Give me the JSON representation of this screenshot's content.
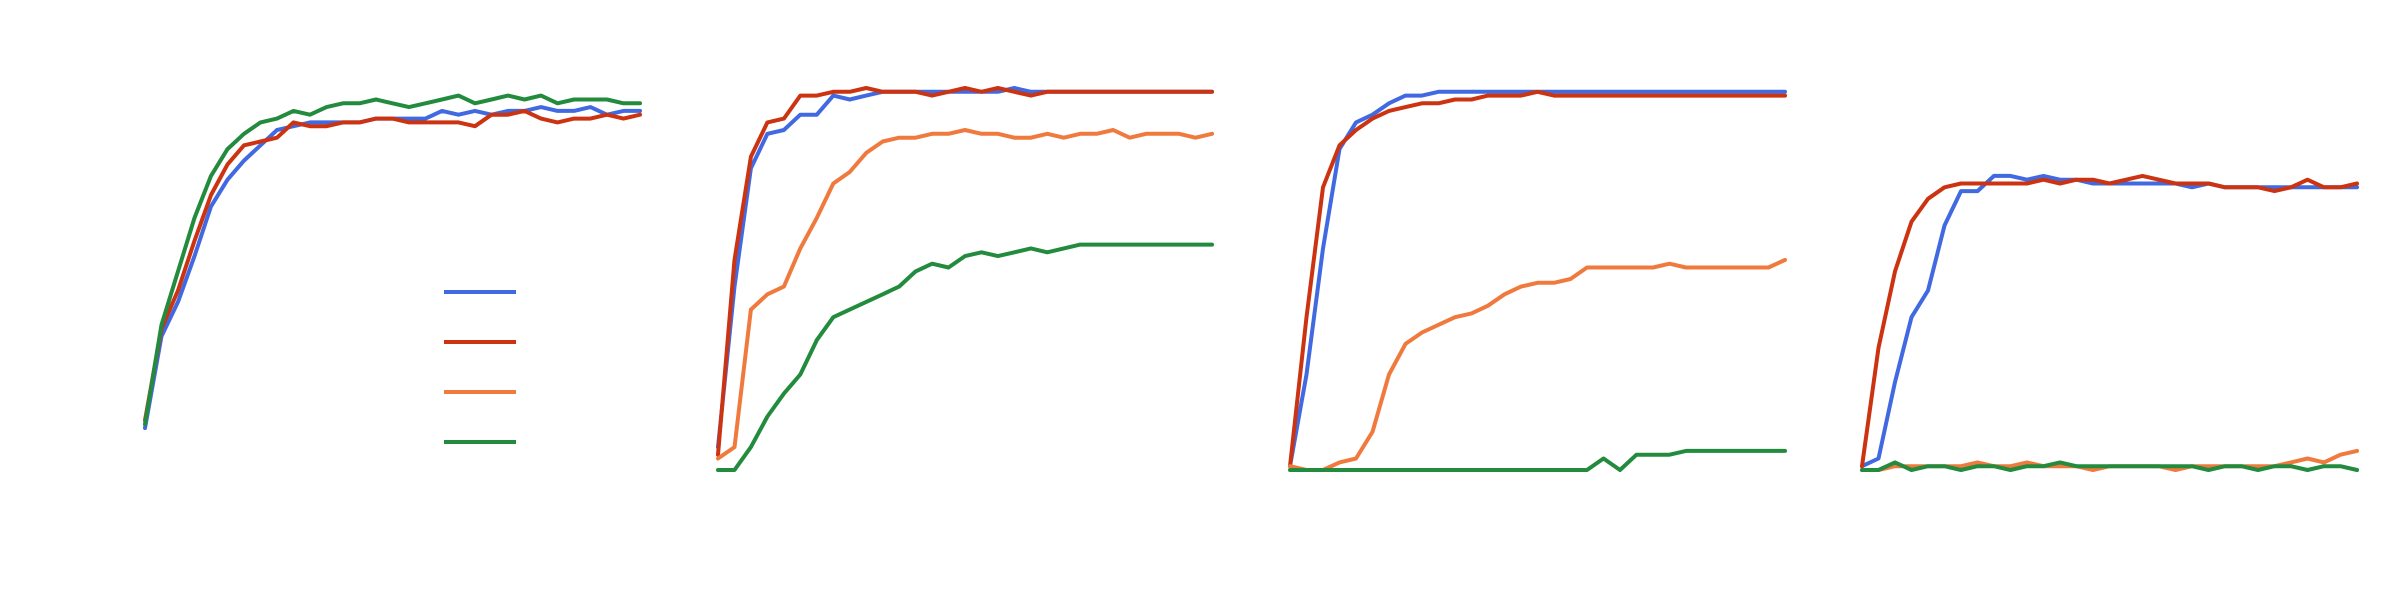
{
  "colors": {
    "blue": "#4169e1",
    "red": "#cc3311",
    "orange": "#f07a3e",
    "green": "#238b3d",
    "background": "#ffffff"
  },
  "chart_data": [
    {
      "type": "line",
      "title": "",
      "xlabel": "",
      "ylabel": "",
      "xlim": [
        0,
        30
      ],
      "ylim": [
        0,
        1
      ],
      "grid": false,
      "legend": {
        "placement": "lower-right",
        "entries": [
          {
            "label": "",
            "color": "#4169e1"
          },
          {
            "label": "",
            "color": "#cc3311"
          },
          {
            "label": "",
            "color": "#f07a3e"
          },
          {
            "label": "",
            "color": "#238b3d"
          }
        ]
      },
      "series": [
        {
          "color": "#4169e1",
          "values": [
            0.11,
            0.35,
            0.44,
            0.56,
            0.69,
            0.76,
            0.81,
            0.85,
            0.89,
            0.9,
            0.91,
            0.91,
            0.91,
            0.91,
            0.92,
            0.92,
            0.92,
            0.92,
            0.94,
            0.93,
            0.94,
            0.93,
            0.94,
            0.94,
            0.95,
            0.94,
            0.94,
            0.95,
            0.93,
            0.94,
            0.94
          ]
        },
        {
          "color": "#cc3311",
          "values": [
            0.13,
            0.37,
            0.47,
            0.6,
            0.72,
            0.8,
            0.85,
            0.86,
            0.87,
            0.91,
            0.9,
            0.9,
            0.91,
            0.91,
            0.92,
            0.92,
            0.91,
            0.91,
            0.91,
            0.91,
            0.9,
            0.93,
            0.93,
            0.94,
            0.92,
            0.91,
            0.92,
            0.92,
            0.93,
            0.92,
            0.93
          ]
        },
        {
          "color": "#238b3d",
          "values": [
            0.12,
            0.38,
            0.52,
            0.66,
            0.77,
            0.84,
            0.88,
            0.91,
            0.92,
            0.94,
            0.93,
            0.95,
            0.96,
            0.96,
            0.97,
            0.96,
            0.95,
            0.96,
            0.97,
            0.98,
            0.96,
            0.97,
            0.98,
            0.97,
            0.98,
            0.96,
            0.97,
            0.97,
            0.97,
            0.96,
            0.96
          ]
        }
      ]
    },
    {
      "type": "line",
      "title": "",
      "xlabel": "",
      "ylabel": "",
      "xlim": [
        0,
        30
      ],
      "ylim": [
        0,
        1
      ],
      "grid": false,
      "series": [
        {
          "color": "#4169e1",
          "values": [
            0.06,
            0.48,
            0.79,
            0.88,
            0.89,
            0.93,
            0.93,
            0.98,
            0.97,
            0.98,
            0.99,
            0.99,
            0.99,
            0.99,
            0.99,
            0.99,
            0.99,
            0.99,
            1.0,
            0.99,
            0.99,
            0.99,
            0.99,
            0.99,
            0.99,
            0.99,
            0.99,
            0.99,
            0.99,
            0.99,
            0.99
          ]
        },
        {
          "color": "#cc3311",
          "values": [
            0.04,
            0.55,
            0.82,
            0.91,
            0.92,
            0.98,
            0.98,
            0.99,
            0.99,
            1.0,
            0.99,
            0.99,
            0.99,
            0.98,
            0.99,
            1.0,
            0.99,
            1.0,
            0.99,
            0.98,
            0.99,
            0.99,
            0.99,
            0.99,
            0.99,
            0.99,
            0.99,
            0.99,
            0.99,
            0.99,
            0.99
          ]
        },
        {
          "color": "#f07a3e",
          "values": [
            0.03,
            0.06,
            0.42,
            0.46,
            0.48,
            0.58,
            0.66,
            0.75,
            0.78,
            0.83,
            0.86,
            0.87,
            0.87,
            0.88,
            0.88,
            0.89,
            0.88,
            0.88,
            0.87,
            0.87,
            0.88,
            0.87,
            0.88,
            0.88,
            0.89,
            0.87,
            0.88,
            0.88,
            0.88,
            0.87,
            0.88
          ]
        },
        {
          "color": "#238b3d",
          "values": [
            0.0,
            0.0,
            0.06,
            0.14,
            0.2,
            0.25,
            0.34,
            0.4,
            0.42,
            0.44,
            0.46,
            0.48,
            0.52,
            0.54,
            0.53,
            0.56,
            0.57,
            0.56,
            0.57,
            0.58,
            0.57,
            0.58,
            0.59,
            0.59,
            0.59,
            0.59,
            0.59,
            0.59,
            0.59,
            0.59,
            0.59
          ]
        }
      ]
    },
    {
      "type": "line",
      "title": "",
      "xlabel": "",
      "ylabel": "",
      "xlim": [
        0,
        30
      ],
      "ylim": [
        0,
        1
      ],
      "grid": false,
      "series": [
        {
          "color": "#4169e1",
          "values": [
            0.01,
            0.25,
            0.58,
            0.84,
            0.91,
            0.93,
            0.96,
            0.98,
            0.98,
            0.99,
            0.99,
            0.99,
            0.99,
            0.99,
            0.99,
            0.99,
            0.99,
            0.99,
            0.99,
            0.99,
            0.99,
            0.99,
            0.99,
            0.99,
            0.99,
            0.99,
            0.99,
            0.99,
            0.99,
            0.99,
            0.99
          ]
        },
        {
          "color": "#cc3311",
          "values": [
            0.01,
            0.4,
            0.74,
            0.85,
            0.89,
            0.92,
            0.94,
            0.95,
            0.96,
            0.96,
            0.97,
            0.97,
            0.98,
            0.98,
            0.98,
            0.99,
            0.98,
            0.98,
            0.98,
            0.98,
            0.98,
            0.98,
            0.98,
            0.98,
            0.98,
            0.98,
            0.98,
            0.98,
            0.98,
            0.98,
            0.98
          ]
        },
        {
          "color": "#f07a3e",
          "values": [
            0.01,
            0.0,
            0.0,
            0.02,
            0.03,
            0.1,
            0.25,
            0.33,
            0.36,
            0.38,
            0.4,
            0.41,
            0.43,
            0.46,
            0.48,
            0.49,
            0.49,
            0.5,
            0.53,
            0.53,
            0.53,
            0.53,
            0.53,
            0.54,
            0.53,
            0.53,
            0.53,
            0.53,
            0.53,
            0.53,
            0.55
          ]
        },
        {
          "color": "#238b3d",
          "values": [
            0.0,
            0.0,
            0.0,
            0.0,
            0.0,
            0.0,
            0.0,
            0.0,
            0.0,
            0.0,
            0.0,
            0.0,
            0.0,
            0.0,
            0.0,
            0.0,
            0.0,
            0.0,
            0.0,
            0.03,
            0.0,
            0.04,
            0.04,
            0.04,
            0.05,
            0.05,
            0.05,
            0.05,
            0.05,
            0.05,
            0.05
          ]
        }
      ]
    },
    {
      "type": "line",
      "title": "",
      "xlabel": "",
      "ylabel": "",
      "xlim": [
        0,
        30
      ],
      "ylim": [
        0,
        1
      ],
      "grid": false,
      "series": [
        {
          "color": "#4169e1",
          "values": [
            0.01,
            0.03,
            0.23,
            0.4,
            0.47,
            0.64,
            0.73,
            0.73,
            0.77,
            0.77,
            0.76,
            0.77,
            0.76,
            0.76,
            0.75,
            0.75,
            0.75,
            0.75,
            0.75,
            0.75,
            0.74,
            0.75,
            0.74,
            0.74,
            0.74,
            0.74,
            0.74,
            0.74,
            0.74,
            0.74,
            0.74
          ]
        },
        {
          "color": "#cc3311",
          "values": [
            0.01,
            0.32,
            0.52,
            0.65,
            0.71,
            0.74,
            0.75,
            0.75,
            0.75,
            0.75,
            0.75,
            0.76,
            0.75,
            0.76,
            0.76,
            0.75,
            0.76,
            0.77,
            0.76,
            0.75,
            0.75,
            0.75,
            0.74,
            0.74,
            0.74,
            0.73,
            0.74,
            0.76,
            0.74,
            0.74,
            0.75
          ]
        },
        {
          "color": "#f07a3e",
          "values": [
            0.0,
            0.0,
            0.01,
            0.01,
            0.01,
            0.01,
            0.01,
            0.02,
            0.01,
            0.01,
            0.02,
            0.01,
            0.01,
            0.01,
            0.0,
            0.01,
            0.01,
            0.01,
            0.01,
            0.0,
            0.01,
            0.01,
            0.01,
            0.01,
            0.01,
            0.01,
            0.02,
            0.03,
            0.02,
            0.04,
            0.05
          ]
        },
        {
          "color": "#238b3d",
          "values": [
            0.0,
            0.0,
            0.02,
            0.0,
            0.01,
            0.01,
            0.0,
            0.01,
            0.01,
            0.0,
            0.01,
            0.01,
            0.02,
            0.01,
            0.01,
            0.01,
            0.01,
            0.01,
            0.01,
            0.01,
            0.01,
            0.0,
            0.01,
            0.01,
            0.0,
            0.01,
            0.01,
            0.0,
            0.01,
            0.01,
            0.0
          ]
        }
      ]
    }
  ]
}
